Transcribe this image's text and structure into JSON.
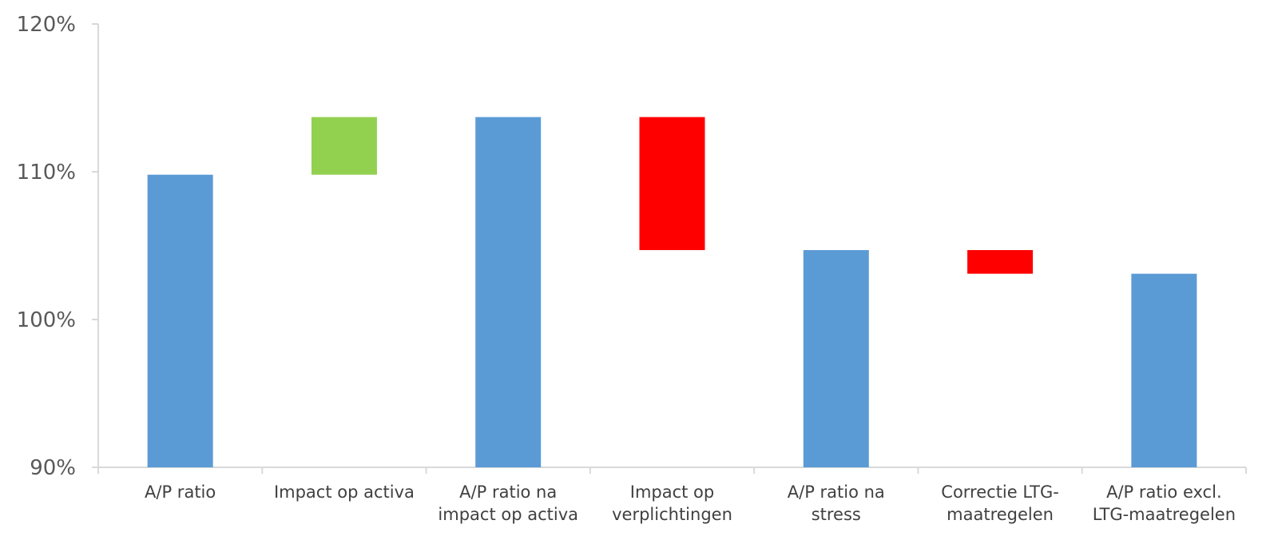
{
  "chart_data": {
    "type": "bar",
    "subtype": "waterfall",
    "title": "",
    "xlabel": "",
    "ylabel": "",
    "ylim": [
      90,
      120
    ],
    "yticks": [
      "90%",
      "100%",
      "110%",
      "120%"
    ],
    "ytick_values": [
      90,
      100,
      110,
      120
    ],
    "grid": false,
    "legend": "none",
    "categories": [
      "A/P ratio",
      "Impact op activa",
      "A/P ratio na impact op activa",
      "Impact op verplichtingen",
      "A/P ratio na stress",
      "Correctie LTG-maatregelen",
      "A/P ratio excl. LTG-maatregelen"
    ],
    "category_lines": [
      [
        "A/P ratio"
      ],
      [
        "Impact op activa"
      ],
      [
        "A/P ratio na",
        "impact op activa"
      ],
      [
        "Impact op",
        "verplichtingen"
      ],
      [
        "A/P ratio na",
        "stress"
      ],
      [
        "Correctie LTG-",
        "maatregelen"
      ],
      [
        "A/P ratio excl.",
        "LTG-maatregelen"
      ]
    ],
    "bars": [
      {
        "kind": "total",
        "start": 90,
        "end": 109.8,
        "color": "#5b9bd5"
      },
      {
        "kind": "increase",
        "start": 109.8,
        "end": 113.7,
        "color": "#92d050"
      },
      {
        "kind": "total",
        "start": 90,
        "end": 113.7,
        "color": "#5b9bd5"
      },
      {
        "kind": "decrease",
        "start": 113.7,
        "end": 104.7,
        "color": "#ff0000"
      },
      {
        "kind": "total",
        "start": 90,
        "end": 104.7,
        "color": "#5b9bd5"
      },
      {
        "kind": "decrease",
        "start": 104.7,
        "end": 103.1,
        "color": "#ff0000"
      },
      {
        "kind": "total",
        "start": 90,
        "end": 103.1,
        "color": "#5b9bd5"
      }
    ],
    "axis_color": "#d9d9d9"
  }
}
